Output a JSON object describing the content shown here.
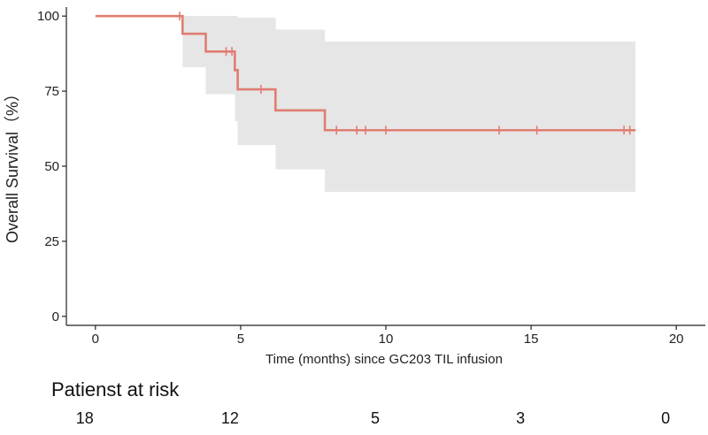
{
  "chart_data": {
    "type": "line",
    "subtype": "kaplan-meier",
    "title": "",
    "xlabel": "Time (months) since GC203 TIL infusion",
    "ylabel": "Overall Survival（%）",
    "xlim": [
      -1,
      21
    ],
    "ylim": [
      -3,
      103
    ],
    "x_ticks": [
      0,
      5,
      10,
      15,
      20
    ],
    "y_ticks": [
      0,
      25,
      50,
      75,
      100
    ],
    "grid": false,
    "colors": {
      "curve": "#e07d72",
      "ci_band": "#e6e6e6",
      "axis": "#222222"
    },
    "survival_steps": [
      {
        "t": 0,
        "s": 100
      },
      {
        "t": 3.0,
        "s": 94.1
      },
      {
        "t": 3.8,
        "s": 88.2
      },
      {
        "t": 4.8,
        "s": 82.0
      },
      {
        "t": 4.9,
        "s": 75.6
      },
      {
        "t": 6.2,
        "s": 68.6
      },
      {
        "t": 7.9,
        "s": 62.0
      }
    ],
    "end_time": 18.6,
    "censor_times": [
      2.9,
      4.5,
      4.7,
      5.7,
      8.3,
      9.0,
      9.3,
      10.0,
      13.9,
      15.2,
      18.2,
      18.4
    ],
    "ci_band": [
      {
        "t": 0,
        "lower": 100,
        "upper": 100
      },
      {
        "t": 3.0,
        "lower": 83.0,
        "upper": 100
      },
      {
        "t": 3.8,
        "lower": 74.0,
        "upper": 100
      },
      {
        "t": 4.8,
        "lower": 65.0,
        "upper": 100
      },
      {
        "t": 4.9,
        "lower": 57.0,
        "upper": 99.5
      },
      {
        "t": 6.2,
        "lower": 49.0,
        "upper": 95.5
      },
      {
        "t": 7.9,
        "lower": 41.5,
        "upper": 91.5
      }
    ]
  },
  "risk_table": {
    "title": "Patienst at risk",
    "times": [
      0,
      5,
      10,
      15,
      20
    ],
    "counts": [
      "18",
      "12",
      "5",
      "3",
      "0"
    ]
  }
}
